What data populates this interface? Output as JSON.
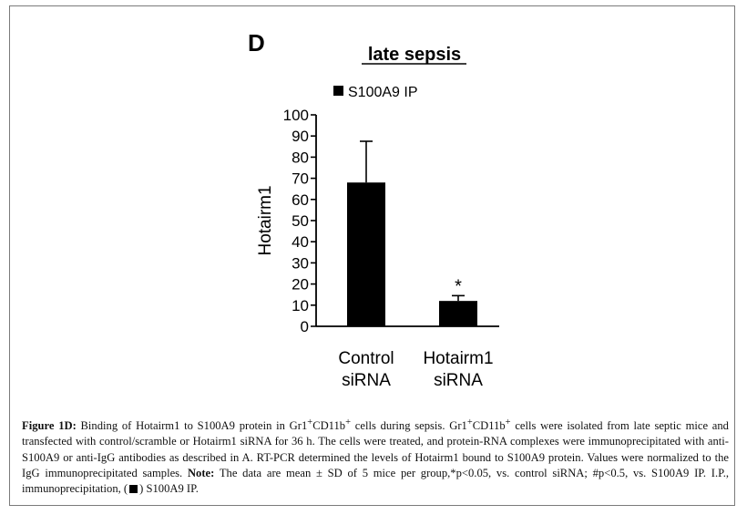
{
  "panel_label": "D",
  "chart_data": {
    "type": "bar",
    "title": "late sepsis",
    "ylabel": "Hotairm1",
    "ylim": [
      0,
      100
    ],
    "yticks": [
      0,
      10,
      20,
      30,
      40,
      50,
      60,
      70,
      80,
      90,
      100
    ],
    "categories": [
      "Control siRNA",
      "Hotairm1 siRNA"
    ],
    "category_lines": [
      [
        "Control",
        "siRNA"
      ],
      [
        "Hotairm1",
        "siRNA"
      ]
    ],
    "series": [
      {
        "name": "S100A9 IP",
        "values": [
          68,
          12
        ],
        "error": [
          19.5,
          2.5
        ],
        "color": "#000000"
      }
    ],
    "annotations": [
      "",
      "*"
    ],
    "legend_position": "top",
    "grid": false
  },
  "caption": {
    "label": "Figure 1D:",
    "text1": "Binding of Hotairm1 to S100A9 protein in Gr1",
    "sup_plus": "+",
    "text2": "CD11b",
    "text3": " cells during sepsis. Gr1",
    "text4": "CD11b",
    "text5": " cells were isolated from late septic mice and transfected with control/scramble or Hotairm1 siRNA for 36 h. The cells were treated, and protein-RNA complexes were immunoprecipitated with anti-S100A9 or anti-IgG antibodies as described in A. RT-PCR determined the levels of Hotairm1 bound to S100A9 protein. Values were normalized to the IgG immunoprecipitated samples.",
    "note_label": "Note:",
    "text6": "The data are mean ± SD of 5 mice per group,*p<0.05, vs. control siRNA; #p<0.5, vs. S100A9 IP. I.P., immunoprecipitation, (",
    "text7": ") S100A9 IP."
  }
}
